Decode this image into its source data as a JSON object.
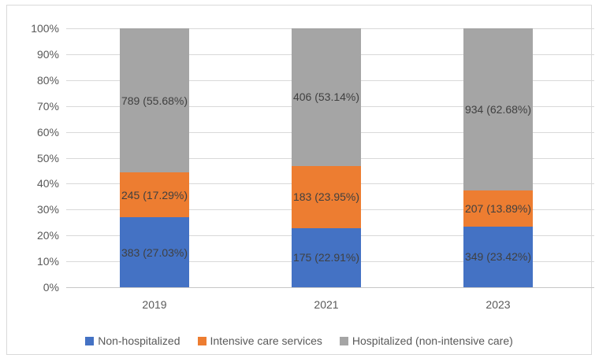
{
  "colors": {
    "series_blue": "#4472C4",
    "series_orange": "#ED7D31",
    "series_gray": "#A5A5A5",
    "gridline": "#D9D9D9",
    "axis_baseline": "#C6C6C6",
    "frame_border": "#D9D9D9",
    "tick_text": "#595959",
    "data_label_text": "#404040",
    "background": "#FFFFFF"
  },
  "chart_data": {
    "type": "bar",
    "subtype": "100-percent-stacked-column",
    "title": "",
    "xlabel": "",
    "ylabel": "",
    "grid": true,
    "ylim": [
      0,
      100
    ],
    "categories": [
      "2019",
      "2021",
      "2023"
    ],
    "series": [
      {
        "name": "Non-hospitalized",
        "color": "#4472C4",
        "counts": [
          383,
          175,
          349
        ],
        "percents": [
          27.03,
          22.91,
          23.42
        ],
        "labels": [
          "383 (27.03%)",
          "175 (22.91%)",
          "349 (23.42%)"
        ]
      },
      {
        "name": "Intensive care services",
        "color": "#ED7D31",
        "counts": [
          245,
          183,
          207
        ],
        "percents": [
          17.29,
          23.95,
          13.89
        ],
        "labels": [
          "245 (17.29%)",
          "183 (23.95%)",
          "207 (13.89%)"
        ]
      },
      {
        "name": "Hospitalized (non-intensive care)",
        "color": "#A5A5A5",
        "counts": [
          789,
          406,
          934
        ],
        "percents": [
          55.68,
          53.14,
          62.68
        ],
        "labels": [
          "789 (55.68%)",
          "406 (53.14%)",
          "934 (62.68%)"
        ]
      }
    ],
    "y_axis": {
      "ticks": [
        {
          "value": 0,
          "label": "0%"
        },
        {
          "value": 10,
          "label": "10%"
        },
        {
          "value": 20,
          "label": "20%"
        },
        {
          "value": 30,
          "label": "30%"
        },
        {
          "value": 40,
          "label": "40%"
        },
        {
          "value": 50,
          "label": "50%"
        },
        {
          "value": 60,
          "label": "60%"
        },
        {
          "value": 70,
          "label": "70%"
        },
        {
          "value": 80,
          "label": "80%"
        },
        {
          "value": 90,
          "label": "90%"
        },
        {
          "value": 100,
          "label": "100%"
        }
      ]
    },
    "legend": {
      "position": "bottom",
      "items": [
        "Non-hospitalized",
        "Intensive care services",
        "Hospitalized (non-intensive care)"
      ]
    }
  }
}
